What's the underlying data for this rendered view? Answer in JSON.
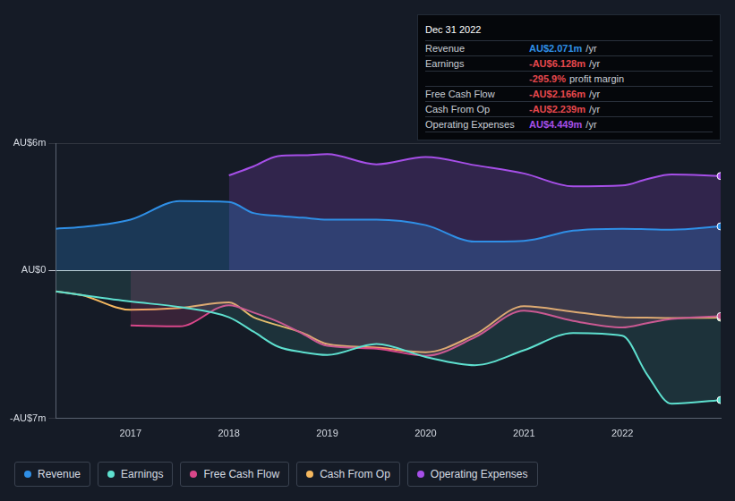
{
  "chart_data": {
    "type": "line",
    "x": [
      2016.24,
      2016.5,
      2017,
      2017.5,
      2018,
      2018.25,
      2018.5,
      2018.75,
      2019,
      2019.5,
      2020,
      2020.5,
      2021,
      2021.5,
      2022,
      2022.25,
      2022.5,
      2023
    ],
    "xlim": [
      2016.24,
      2023
    ],
    "xticks": [
      2017,
      2018,
      2019,
      2020,
      2021,
      2022
    ],
    "ylim": [
      -7,
      6
    ],
    "yticks": [
      {
        "value": 6,
        "label": "AU$6m"
      },
      {
        "value": 0,
        "label": "AU$0"
      },
      {
        "value": -7,
        "label": "-AU$7m"
      }
    ],
    "grid": true,
    "series": [
      {
        "name": "Revenue",
        "color": "#2f8fe6",
        "values": [
          1.96,
          2.04,
          2.39,
          3.26,
          3.22,
          2.7,
          2.57,
          2.48,
          2.39,
          2.39,
          2.13,
          1.35,
          1.39,
          1.87,
          1.96,
          1.94,
          1.91,
          2.071
        ]
      },
      {
        "name": "Earnings",
        "color": "#5ee0cf",
        "values": [
          -1.0,
          -1.17,
          -1.48,
          -1.74,
          -2.22,
          -2.9,
          -3.61,
          -3.87,
          -4.0,
          -3.48,
          -4.09,
          -4.48,
          -3.78,
          -2.96,
          -3.09,
          -4.91,
          -6.3,
          -6.128
        ]
      },
      {
        "name": "Free Cash Flow",
        "color": "#d9478a",
        "values": [
          null,
          null,
          -2.61,
          -2.65,
          -1.65,
          -2.0,
          -2.43,
          -3.0,
          -3.57,
          -3.7,
          -4.04,
          -3.17,
          -1.91,
          -2.39,
          -2.7,
          -2.5,
          -2.3,
          -2.166
        ]
      },
      {
        "name": "Cash From Op",
        "color": "#f5b85f",
        "values": [
          -1.0,
          -1.17,
          -1.87,
          -1.78,
          -1.52,
          -2.22,
          -2.6,
          -2.96,
          -3.48,
          -3.65,
          -3.87,
          -3.04,
          -1.7,
          -1.96,
          -2.22,
          -2.24,
          -2.26,
          -2.239
        ]
      },
      {
        "name": "Operating Expenses",
        "color": "#a64fe8",
        "values": [
          null,
          null,
          null,
          null,
          4.48,
          4.9,
          5.39,
          5.43,
          5.48,
          5.0,
          5.35,
          4.96,
          4.57,
          3.96,
          4.0,
          4.3,
          4.52,
          4.449
        ]
      }
    ],
    "tooltip": {
      "date": "Dec 31 2022",
      "rows": [
        {
          "label": "Revenue",
          "value": "AU$2.071m",
          "unit": "/yr",
          "color": "#2f8fe6"
        },
        {
          "label": "Earnings",
          "value": "-AU$6.128m",
          "unit": "/yr",
          "color": "#e5484d"
        },
        {
          "label": "",
          "value": "-295.9%",
          "unit": "profit margin",
          "color": "#e5484d"
        },
        {
          "label": "Free Cash Flow",
          "value": "-AU$2.166m",
          "unit": "/yr",
          "color": "#e5484d"
        },
        {
          "label": "Cash From Op",
          "value": "-AU$2.239m",
          "unit": "/yr",
          "color": "#e5484d"
        },
        {
          "label": "Operating Expenses",
          "value": "AU$4.449m",
          "unit": "/yr",
          "color": "#a64fe8"
        }
      ]
    }
  }
}
